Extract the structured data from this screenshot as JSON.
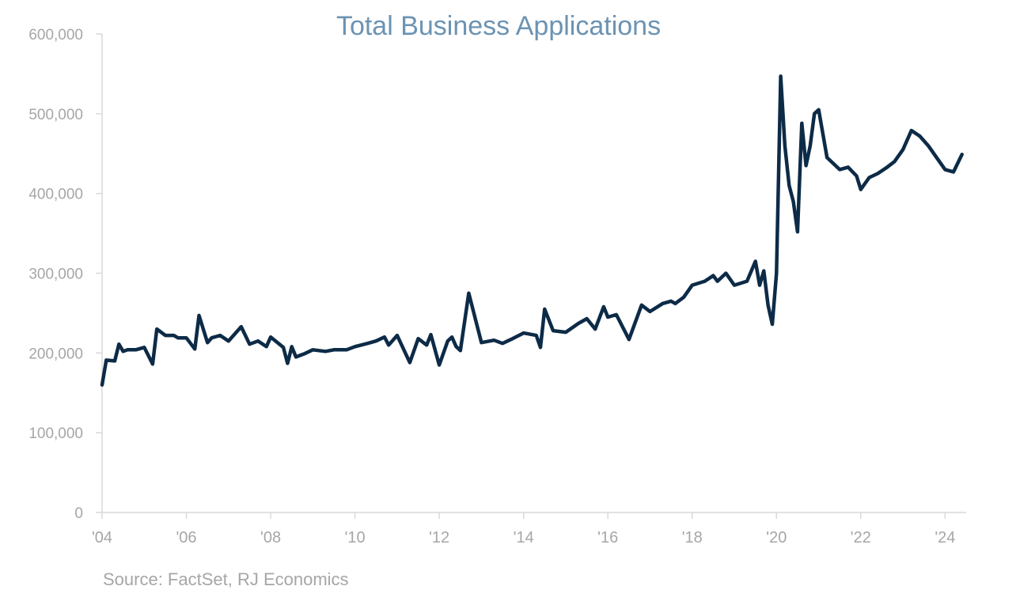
{
  "chart_data": {
    "type": "line",
    "title": "Total Business Applications",
    "source": "Source: FactSet, RJ Economics",
    "xlabel": "",
    "ylabel": "",
    "ylim": [
      0,
      600000
    ],
    "xlim": [
      2004.0,
      2024.5
    ],
    "y_ticks": [
      0,
      100000,
      200000,
      300000,
      400000,
      500000,
      600000
    ],
    "y_tick_labels": [
      "0",
      "100,000",
      "200,000",
      "300,000",
      "400,000",
      "500,000",
      "600,000"
    ],
    "x_ticks": [
      2004,
      2006,
      2008,
      2010,
      2012,
      2014,
      2016,
      2018,
      2020,
      2022,
      2024
    ],
    "x_tick_labels": [
      "'04",
      "'06",
      "'08",
      "'10",
      "'12",
      "'14",
      "'16",
      "'18",
      "'20",
      "'22",
      "'24"
    ],
    "grid": false,
    "line_color": "#0d2b47",
    "series": [
      {
        "x": [
          2004.0,
          2004.1,
          2004.3,
          2004.4,
          2004.5,
          2004.6,
          2004.8,
          2005.0,
          2005.2,
          2005.3,
          2005.5,
          2005.7,
          2005.8,
          2006.0,
          2006.2,
          2006.3,
          2006.5,
          2006.6,
          2006.8,
          2007.0,
          2007.3,
          2007.5,
          2007.7,
          2007.9,
          2008.0,
          2008.3,
          2008.4,
          2008.5,
          2008.6,
          2008.8,
          2009.0,
          2009.3,
          2009.5,
          2009.8,
          2010.0,
          2010.3,
          2010.5,
          2010.7,
          2010.8,
          2011.0,
          2011.3,
          2011.5,
          2011.7,
          2011.8,
          2012.0,
          2012.2,
          2012.3,
          2012.4,
          2012.5,
          2012.7,
          2013.0,
          2013.3,
          2013.5,
          2013.7,
          2014.0,
          2014.3,
          2014.4,
          2014.5,
          2014.7,
          2015.0,
          2015.3,
          2015.5,
          2015.7,
          2015.9,
          2016.0,
          2016.2,
          2016.5,
          2016.8,
          2017.0,
          2017.3,
          2017.5,
          2017.6,
          2017.8,
          2018.0,
          2018.3,
          2018.5,
          2018.6,
          2018.8,
          2019.0,
          2019.3,
          2019.5,
          2019.6,
          2019.7,
          2019.8,
          2019.9,
          2020.0,
          2020.1,
          2020.2,
          2020.3,
          2020.4,
          2020.5,
          2020.6,
          2020.7,
          2020.8,
          2020.9,
          2021.0,
          2021.2,
          2021.5,
          2021.7,
          2021.9,
          2022.0,
          2022.2,
          2022.4,
          2022.6,
          2022.8,
          2023.0,
          2023.2,
          2023.4,
          2023.6,
          2023.8,
          2024.0,
          2024.2,
          2024.4
        ],
        "values": [
          160000,
          191000,
          190000,
          211000,
          202000,
          204000,
          204000,
          207000,
          186000,
          230000,
          222000,
          222000,
          219000,
          219000,
          205000,
          247000,
          213000,
          219000,
          222000,
          215000,
          233000,
          211000,
          215000,
          208000,
          220000,
          207000,
          187000,
          208000,
          195000,
          199000,
          204000,
          202000,
          204000,
          204000,
          208000,
          212000,
          215000,
          220000,
          210000,
          222000,
          188000,
          218000,
          210000,
          223000,
          185000,
          215000,
          220000,
          208000,
          203000,
          275000,
          213000,
          216000,
          212000,
          217000,
          225000,
          222000,
          207000,
          255000,
          228000,
          226000,
          237000,
          243000,
          230000,
          258000,
          245000,
          248000,
          217000,
          260000,
          252000,
          262000,
          265000,
          262000,
          270000,
          285000,
          290000,
          297000,
          290000,
          300000,
          285000,
          290000,
          315000,
          285000,
          303000,
          260000,
          236000,
          300000,
          547000,
          460000,
          410000,
          390000,
          352000,
          488000,
          435000,
          460000,
          500000,
          505000,
          445000,
          430000,
          433000,
          422000,
          405000,
          420000,
          425000,
          432000,
          440000,
          455000,
          479000,
          472000,
          460000,
          445000,
          430000,
          427000,
          449000
        ],
        "name": ""
      }
    ]
  }
}
